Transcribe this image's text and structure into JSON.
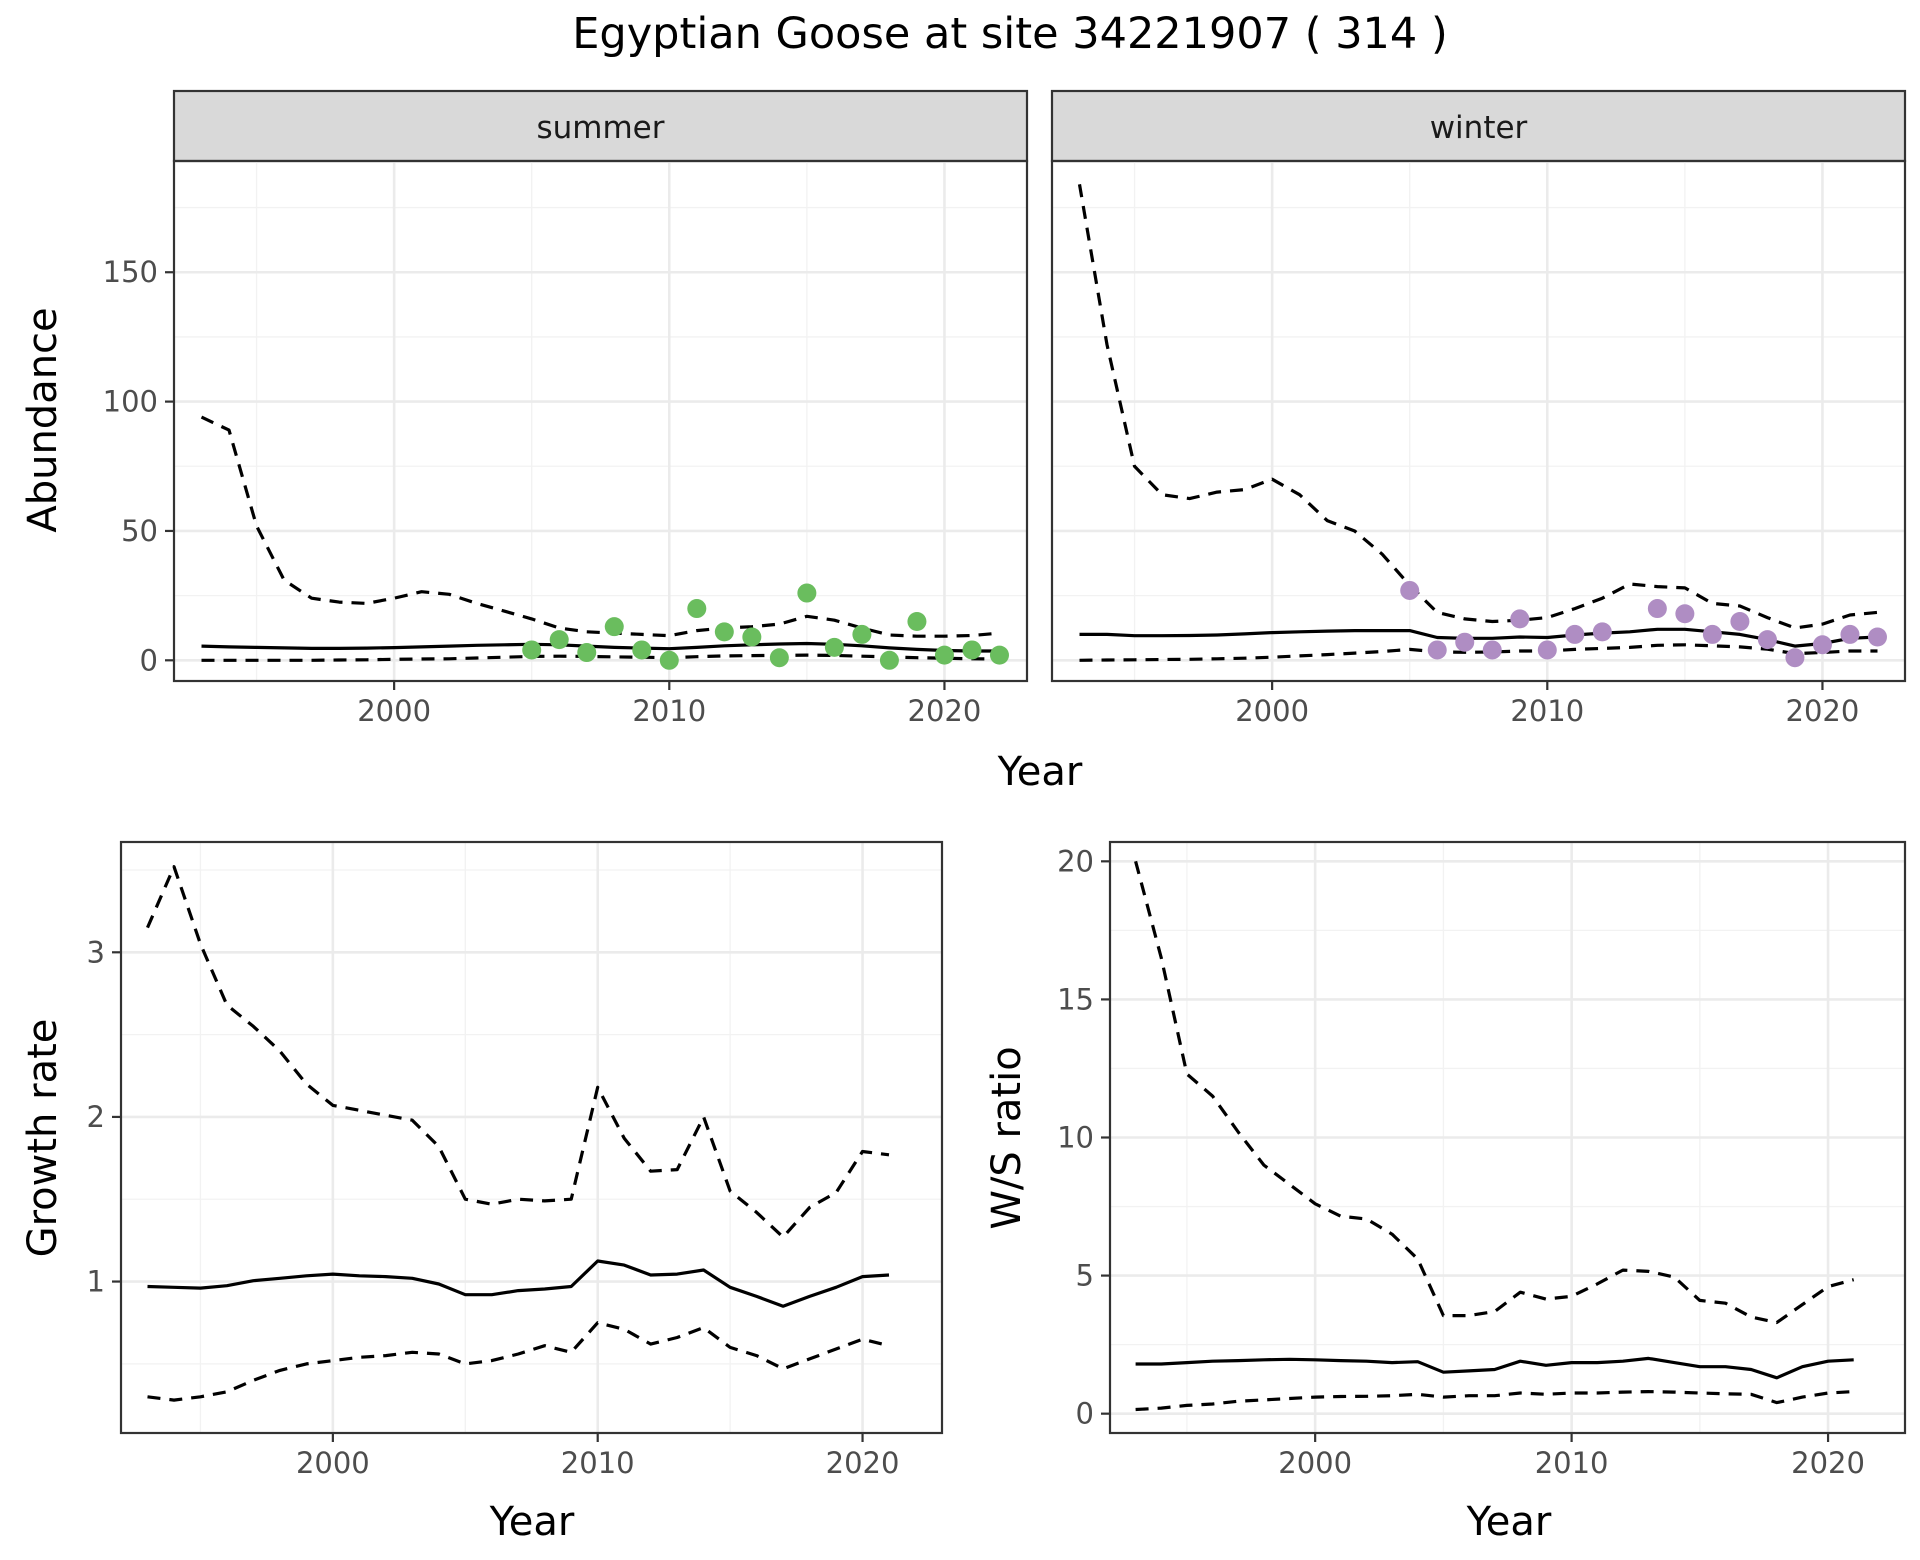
{
  "figure": {
    "title": "Egyptian Goose at site 34221907 ( 314 )"
  },
  "chart_data": [
    {
      "id": "abundance_summer",
      "type": "line",
      "facet": "summer",
      "xlabel": "",
      "ylabel": "Abundance",
      "xlim": [
        1992,
        2023
      ],
      "ylim": [
        -8,
        193
      ],
      "xticks": [
        2000,
        2010,
        2020
      ],
      "yticks": [
        0,
        50,
        100,
        150
      ],
      "grid": true,
      "point_color": "#6abd5e",
      "x": [
        1993,
        1994,
        1995,
        1996,
        1997,
        1998,
        1999,
        2000,
        2001,
        2002,
        2003,
        2004,
        2005,
        2006,
        2007,
        2008,
        2009,
        2010,
        2011,
        2012,
        2013,
        2014,
        2015,
        2016,
        2017,
        2018,
        2019,
        2020,
        2021,
        2022
      ],
      "estimate": [
        5.5,
        5.2,
        5.0,
        4.8,
        4.6,
        4.6,
        4.7,
        4.9,
        5.2,
        5.5,
        5.8,
        6.0,
        6.2,
        6.0,
        5.5,
        5.0,
        4.7,
        4.5,
        5.0,
        5.6,
        6.0,
        6.3,
        6.5,
        6.2,
        5.6,
        4.8,
        4.2,
        3.8,
        3.6,
        3.6
      ],
      "upper": [
        94,
        89,
        52,
        31,
        24,
        22.5,
        22,
        24,
        26.5,
        25.5,
        22,
        19,
        16,
        12.5,
        11,
        10.5,
        10,
        9.5,
        11.5,
        12.5,
        13,
        14,
        17,
        15.5,
        12.5,
        9.8,
        9.3,
        9.3,
        9.6,
        10.5
      ],
      "lower": [
        0,
        0,
        0,
        0,
        0,
        0.1,
        0.2,
        0.4,
        0.5,
        0.6,
        0.9,
        1.2,
        1.5,
        1.6,
        1.5,
        1.3,
        1.2,
        1.0,
        1.4,
        1.7,
        1.8,
        1.9,
        2.0,
        1.9,
        1.6,
        1.3,
        1.0,
        0.8,
        0.6,
        0.5
      ],
      "observations": {
        "x": [
          2005,
          2006,
          2007,
          2008,
          2009,
          2010,
          2011,
          2012,
          2013,
          2014,
          2015,
          2016,
          2017,
          2018,
          2019,
          2020,
          2021,
          2022
        ],
        "y": [
          4,
          8,
          3,
          13,
          4,
          0,
          20,
          11,
          9,
          1,
          26,
          5,
          10,
          0,
          15,
          2,
          4,
          2
        ]
      }
    },
    {
      "id": "abundance_winter",
      "type": "line",
      "facet": "winter",
      "xlabel": "Year",
      "ylabel": "",
      "xlim": [
        1992,
        2023
      ],
      "ylim": [
        -8,
        193
      ],
      "xticks": [
        2000,
        2010,
        2020
      ],
      "yticks": [
        0,
        50,
        100,
        150
      ],
      "grid": true,
      "point_color": "#af8dc3",
      "x": [
        1993,
        1994,
        1995,
        1996,
        1997,
        1998,
        1999,
        2000,
        2001,
        2002,
        2003,
        2004,
        2005,
        2006,
        2007,
        2008,
        2009,
        2010,
        2011,
        2012,
        2013,
        2014,
        2015,
        2016,
        2017,
        2018,
        2019,
        2020,
        2021,
        2022
      ],
      "estimate": [
        10,
        10,
        9.5,
        9.5,
        9.6,
        9.8,
        10.2,
        10.7,
        11,
        11.3,
        11.5,
        11.5,
        11.5,
        8.8,
        8.5,
        8.5,
        9,
        8.8,
        9.8,
        10.5,
        11,
        12,
        12,
        11,
        10,
        8,
        5.5,
        6.5,
        8.5,
        9
      ],
      "upper": [
        184,
        122,
        75,
        64,
        62.5,
        65,
        66,
        70,
        64,
        54,
        50,
        41,
        29,
        18.5,
        16,
        15,
        15.5,
        16.5,
        20,
        24,
        29.5,
        28.5,
        28,
        22,
        21,
        16.5,
        12.5,
        14,
        17.5,
        18.5
      ],
      "lower": [
        0,
        0.1,
        0.2,
        0.3,
        0.4,
        0.6,
        0.8,
        1.2,
        1.7,
        2.2,
        2.8,
        3.4,
        4.2,
        3.3,
        3.1,
        3.2,
        3.6,
        3.6,
        4.2,
        4.6,
        5,
        5.8,
        6,
        5.6,
        5.2,
        4.3,
        2.6,
        3,
        3.6,
        3.6
      ],
      "observations": {
        "x": [
          2005,
          2006,
          2007,
          2008,
          2009,
          2010,
          2011,
          2012,
          2014,
          2015,
          2016,
          2017,
          2018,
          2019,
          2020,
          2021,
          2022
        ],
        "y": [
          27,
          4,
          7,
          4,
          16,
          4,
          10,
          11,
          20,
          18,
          10,
          15,
          8,
          1,
          6,
          10,
          9
        ]
      }
    },
    {
      "id": "growth_rate",
      "type": "line",
      "xlabel": "Year",
      "ylabel": "Growth rate",
      "xlim": [
        1992,
        2023
      ],
      "ylim": [
        0.08,
        3.67
      ],
      "xticks": [
        2000,
        2010,
        2020
      ],
      "yticks": [
        1,
        2,
        3
      ],
      "grid": true,
      "x": [
        1993,
        1994,
        1995,
        1996,
        1997,
        1998,
        1999,
        2000,
        2001,
        2002,
        2003,
        2004,
        2005,
        2006,
        2007,
        2008,
        2009,
        2010,
        2011,
        2012,
        2013,
        2014,
        2015,
        2016,
        2017,
        2018,
        2019,
        2020,
        2021
      ],
      "estimate": [
        0.97,
        0.965,
        0.96,
        0.975,
        1.005,
        1.02,
        1.035,
        1.045,
        1.035,
        1.03,
        1.02,
        0.985,
        0.92,
        0.92,
        0.945,
        0.955,
        0.97,
        1.125,
        1.1,
        1.04,
        1.045,
        1.07,
        0.965,
        0.91,
        0.85,
        0.91,
        0.965,
        1.03,
        1.04
      ],
      "upper": [
        3.15,
        3.52,
        3.05,
        2.68,
        2.55,
        2.4,
        2.2,
        2.07,
        2.04,
        2.01,
        1.98,
        1.82,
        1.5,
        1.47,
        1.5,
        1.49,
        1.5,
        2.18,
        1.87,
        1.67,
        1.68,
        2,
        1.55,
        1.42,
        1.27,
        1.45,
        1.54,
        1.79,
        1.77
      ],
      "lower": [
        0.3,
        0.28,
        0.3,
        0.33,
        0.4,
        0.46,
        0.5,
        0.52,
        0.54,
        0.55,
        0.57,
        0.56,
        0.5,
        0.52,
        0.56,
        0.61,
        0.57,
        0.75,
        0.71,
        0.62,
        0.66,
        0.72,
        0.6,
        0.55,
        0.47,
        0.53,
        0.59,
        0.65,
        0.61
      ]
    },
    {
      "id": "ws_ratio",
      "type": "line",
      "xlabel": "Year",
      "ylabel": "W/S ratio",
      "xlim": [
        1992,
        2023
      ],
      "ylim": [
        -0.7,
        20.7
      ],
      "xticks": [
        2000,
        2010,
        2020
      ],
      "yticks": [
        0,
        5,
        10,
        15,
        20
      ],
      "grid": true,
      "x": [
        1993,
        1994,
        1995,
        1996,
        1997,
        1998,
        1999,
        2000,
        2001,
        2002,
        2003,
        2004,
        2005,
        2006,
        2007,
        2008,
        2009,
        2010,
        2011,
        2012,
        2013,
        2014,
        2015,
        2016,
        2017,
        2018,
        2019,
        2020,
        2021
      ],
      "estimate": [
        1.8,
        1.8,
        1.85,
        1.9,
        1.92,
        1.95,
        1.97,
        1.95,
        1.92,
        1.9,
        1.85,
        1.88,
        1.5,
        1.55,
        1.6,
        1.9,
        1.75,
        1.85,
        1.85,
        1.9,
        2,
        1.85,
        1.7,
        1.7,
        1.6,
        1.3,
        1.7,
        1.9,
        1.95
      ],
      "upper": [
        20,
        16.5,
        12.3,
        11.5,
        10.2,
        9,
        8.3,
        7.6,
        7.15,
        7.05,
        6.5,
        5.6,
        3.55,
        3.55,
        3.7,
        4.4,
        4.15,
        4.25,
        4.7,
        5.2,
        5.15,
        4.95,
        4.1,
        4,
        3.5,
        3.3,
        3.95,
        4.6,
        4.85
      ],
      "lower": [
        0.15,
        0.2,
        0.3,
        0.35,
        0.45,
        0.5,
        0.55,
        0.6,
        0.62,
        0.63,
        0.65,
        0.7,
        0.6,
        0.65,
        0.65,
        0.75,
        0.7,
        0.75,
        0.75,
        0.78,
        0.8,
        0.78,
        0.75,
        0.72,
        0.7,
        0.4,
        0.6,
        0.75,
        0.8
      ]
    }
  ]
}
